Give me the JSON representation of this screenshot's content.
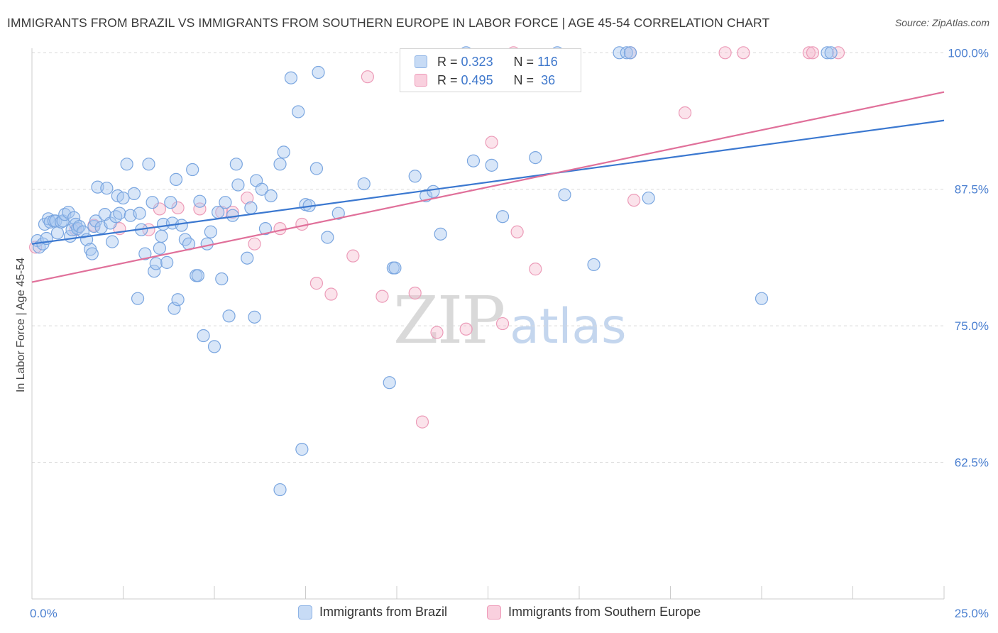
{
  "title": "IMMIGRANTS FROM BRAZIL VS IMMIGRANTS FROM SOUTHERN EUROPE IN LABOR FORCE | AGE 45-54 CORRELATION CHART",
  "source": "Source: ZipAtlas.com",
  "watermark": {
    "zip": "ZIP",
    "atlas": "atlas"
  },
  "colors": {
    "brazil": "#a8c8f0",
    "brazil_line": "#3b78d0",
    "southern_europe": "#f5b8cc",
    "southern_europe_line": "#e0709a",
    "tick_text": "#4a7fd0"
  },
  "legend": {
    "rows": [
      {
        "r_label": "R =",
        "r_value": "0.323",
        "n_label": "N =",
        "n_value": "116"
      },
      {
        "r_label": "R =",
        "r_value": "0.495",
        "n_label": "N =",
        "n_value": "36"
      }
    ]
  },
  "chart_data": {
    "type": "scatter",
    "title": "IMMIGRANTS FROM BRAZIL VS IMMIGRANTS FROM SOUTHERN EUROPE IN LABOR FORCE | AGE 45-54 CORRELATION CHART",
    "xlabel": "",
    "ylabel": "In Labor Force | Age 45-54",
    "xlim": [
      0,
      25
    ],
    "ylim": [
      50,
      100.8
    ],
    "x_tick_labels": [
      {
        "value": 0,
        "label": "0.0%"
      },
      {
        "value": 25,
        "label": "25.0%"
      }
    ],
    "y_tick_labels": [
      {
        "value": 100,
        "label": "100.0%"
      },
      {
        "value": 87.5,
        "label": "87.5%"
      },
      {
        "value": 75,
        "label": "75.0%"
      },
      {
        "value": 62.5,
        "label": "62.5%"
      }
    ],
    "grid": "horizontal dashed",
    "legend_position": "top-center",
    "series": [
      {
        "name": "Immigrants from Brazil",
        "r": 0.323,
        "n": 116,
        "trend": {
          "x": [
            0,
            25
          ],
          "y": [
            82.5,
            93.8
          ]
        },
        "points": [
          [
            0.15,
            82.8
          ],
          [
            0.2,
            82.2
          ],
          [
            0.3,
            82.5
          ],
          [
            0.35,
            84.3
          ],
          [
            0.4,
            83.0
          ],
          [
            0.45,
            84.8
          ],
          [
            0.5,
            84.5
          ],
          [
            0.6,
            84.6
          ],
          [
            0.65,
            84.6
          ],
          [
            0.7,
            83.5
          ],
          [
            0.8,
            84.5
          ],
          [
            0.85,
            84.6
          ],
          [
            0.9,
            85.2
          ],
          [
            1.0,
            85.4
          ],
          [
            1.05,
            83.2
          ],
          [
            1.1,
            83.8
          ],
          [
            1.15,
            84.9
          ],
          [
            1.2,
            84.3
          ],
          [
            1.25,
            83.9
          ],
          [
            1.3,
            84.1
          ],
          [
            1.4,
            83.6
          ],
          [
            1.5,
            82.9
          ],
          [
            1.6,
            82.0
          ],
          [
            1.65,
            81.6
          ],
          [
            1.7,
            84.1
          ],
          [
            1.75,
            84.6
          ],
          [
            1.8,
            87.7
          ],
          [
            1.9,
            84.0
          ],
          [
            2.0,
            85.2
          ],
          [
            2.05,
            87.6
          ],
          [
            2.15,
            84.4
          ],
          [
            2.2,
            82.7
          ],
          [
            2.3,
            85.0
          ],
          [
            2.35,
            86.9
          ],
          [
            2.4,
            85.3
          ],
          [
            2.5,
            86.7
          ],
          [
            2.6,
            89.8
          ],
          [
            2.7,
            85.1
          ],
          [
            2.8,
            87.1
          ],
          [
            2.9,
            77.5
          ],
          [
            2.95,
            85.3
          ],
          [
            3.0,
            83.8
          ],
          [
            3.1,
            81.6
          ],
          [
            3.2,
            89.8
          ],
          [
            3.3,
            86.3
          ],
          [
            3.35,
            80.0
          ],
          [
            3.4,
            80.7
          ],
          [
            3.5,
            82.1
          ],
          [
            3.55,
            83.2
          ],
          [
            3.6,
            84.3
          ],
          [
            3.7,
            80.8
          ],
          [
            3.8,
            86.3
          ],
          [
            3.85,
            84.4
          ],
          [
            3.9,
            76.6
          ],
          [
            3.95,
            88.4
          ],
          [
            4.0,
            77.4
          ],
          [
            4.1,
            84.2
          ],
          [
            4.2,
            82.9
          ],
          [
            4.3,
            82.5
          ],
          [
            4.4,
            89.3
          ],
          [
            4.5,
            79.6
          ],
          [
            4.55,
            79.6
          ],
          [
            4.6,
            86.4
          ],
          [
            4.7,
            74.1
          ],
          [
            4.8,
            82.5
          ],
          [
            4.9,
            83.6
          ],
          [
            5.0,
            73.1
          ],
          [
            5.1,
            85.4
          ],
          [
            5.2,
            79.3
          ],
          [
            5.3,
            86.3
          ],
          [
            5.4,
            75.9
          ],
          [
            5.5,
            85.1
          ],
          [
            5.6,
            89.8
          ],
          [
            5.65,
            87.9
          ],
          [
            5.9,
            81.2
          ],
          [
            6.0,
            85.8
          ],
          [
            6.1,
            75.8
          ],
          [
            6.15,
            88.3
          ],
          [
            6.3,
            87.5
          ],
          [
            6.4,
            83.9
          ],
          [
            6.55,
            86.9
          ],
          [
            6.8,
            89.8
          ],
          [
            6.9,
            90.9
          ],
          [
            7.1,
            97.7
          ],
          [
            7.3,
            94.6
          ],
          [
            7.4,
            63.7
          ],
          [
            7.5,
            86.1
          ],
          [
            7.6,
            86.0
          ],
          [
            7.8,
            89.4
          ],
          [
            7.85,
            98.2
          ],
          [
            8.1,
            83.1
          ],
          [
            8.4,
            85.3
          ],
          [
            9.1,
            88.0
          ],
          [
            9.9,
            80.3
          ],
          [
            9.95,
            80.3
          ],
          [
            9.8,
            69.8
          ],
          [
            10.5,
            88.7
          ],
          [
            10.8,
            86.9
          ],
          [
            11.0,
            87.3
          ],
          [
            11.2,
            83.4
          ],
          [
            11.9,
            100.0
          ],
          [
            12.1,
            90.1
          ],
          [
            12.6,
            89.7
          ],
          [
            12.9,
            85.0
          ],
          [
            13.8,
            90.4
          ],
          [
            14.4,
            100.0
          ],
          [
            14.6,
            87.0
          ],
          [
            15.4,
            80.6
          ],
          [
            16.1,
            100.0
          ],
          [
            16.3,
            100.0
          ],
          [
            16.4,
            100.0
          ],
          [
            16.9,
            86.7
          ],
          [
            20.0,
            77.5
          ],
          [
            21.8,
            100.0
          ],
          [
            21.9,
            100.0
          ],
          [
            6.8,
            60.0
          ]
        ]
      },
      {
        "name": "Immigrants from Southern Europe",
        "r": 0.495,
        "n": 36,
        "trend": {
          "x": [
            0,
            25
          ],
          "y": [
            79.0,
            96.4
          ]
        },
        "points": [
          [
            0.1,
            82.2
          ],
          [
            1.2,
            83.8
          ],
          [
            1.7,
            84.2
          ],
          [
            2.4,
            83.9
          ],
          [
            3.2,
            83.8
          ],
          [
            3.5,
            85.7
          ],
          [
            4.0,
            85.8
          ],
          [
            4.6,
            85.7
          ],
          [
            5.2,
            85.4
          ],
          [
            5.5,
            85.4
          ],
          [
            5.9,
            86.7
          ],
          [
            6.1,
            82.5
          ],
          [
            6.8,
            83.9
          ],
          [
            7.4,
            84.3
          ],
          [
            7.8,
            78.9
          ],
          [
            8.2,
            77.9
          ],
          [
            8.8,
            81.4
          ],
          [
            9.2,
            97.8
          ],
          [
            9.6,
            77.7
          ],
          [
            10.5,
            78.0
          ],
          [
            10.7,
            66.2
          ],
          [
            11.1,
            74.4
          ],
          [
            11.9,
            74.7
          ],
          [
            12.6,
            91.8
          ],
          [
            12.9,
            75.2
          ],
          [
            13.2,
            100.0
          ],
          [
            13.3,
            83.6
          ],
          [
            13.8,
            80.2
          ],
          [
            16.4,
            100.0
          ],
          [
            16.5,
            86.5
          ],
          [
            17.9,
            94.5
          ],
          [
            19.0,
            100.0
          ],
          [
            19.5,
            100.0
          ],
          [
            21.3,
            100.0
          ],
          [
            21.4,
            100.0
          ],
          [
            22.1,
            100.0
          ]
        ]
      }
    ]
  },
  "bottom_legend": [
    {
      "label": "Immigrants from Brazil"
    },
    {
      "label": "Immigrants from Southern Europe"
    }
  ]
}
